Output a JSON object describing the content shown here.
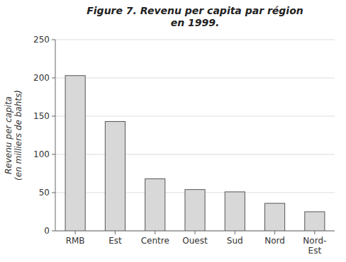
{
  "chart_data": {
    "type": "bar",
    "title": "Figure 7. Revenu per capita par région\nen 1999.",
    "y_label": "Revenu per capita\n(en milliers de bahts)",
    "categories": [
      "RMB",
      "Est",
      "Centre",
      "Ouest",
      "Sud",
      "Nord",
      "Nord-\nEst"
    ],
    "values": [
      203,
      143,
      68,
      54,
      51,
      36,
      25
    ],
    "color": "#d8d8d8",
    "ylim": [
      0,
      250
    ],
    "yticks": [
      0,
      50,
      100,
      150,
      200,
      250
    ],
    "grid": true
  }
}
